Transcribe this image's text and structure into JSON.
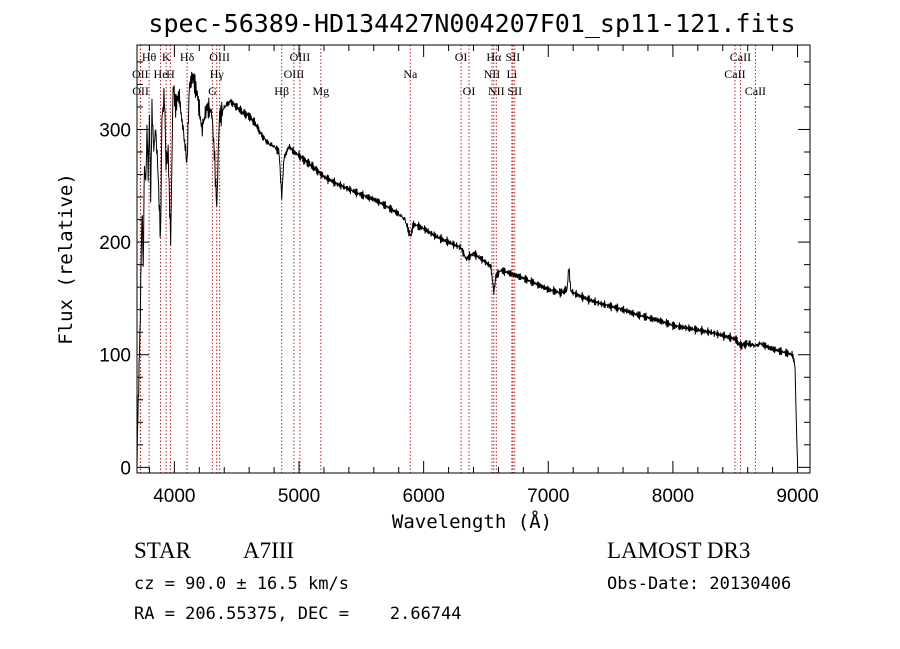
{
  "chart_data": {
    "type": "line",
    "title": "spec-56389-HD134427N004207F01_sp11-121.fits",
    "xlabel": "Wavelength (Å)",
    "ylabel": "Flux (relative)",
    "xlim": [
      3700,
      9100
    ],
    "ylim": [
      -5,
      375
    ],
    "xticks": [
      4000,
      5000,
      6000,
      7000,
      8000,
      9000
    ],
    "yticks": [
      0,
      100,
      200,
      300
    ],
    "series": [
      {
        "name": "spectrum",
        "x": [
          3700,
          3710,
          3720,
          3730,
          3740,
          3750,
          3760,
          3770,
          3780,
          3790,
          3800,
          3810,
          3820,
          3835,
          3850,
          3870,
          3889,
          3900,
          3920,
          3933,
          3950,
          3970,
          3990,
          4010,
          4040,
          4070,
          4102,
          4120,
          4150,
          4180,
          4220,
          4260,
          4300,
          4320,
          4340,
          4360,
          4400,
          4450,
          4500,
          4550,
          4600,
          4650,
          4700,
          4750,
          4800,
          4840,
          4861,
          4880,
          4920,
          4960,
          5000,
          5050,
          5100,
          5150,
          5200,
          5300,
          5400,
          5500,
          5600,
          5700,
          5800,
          5850,
          5893,
          5920,
          6000,
          6100,
          6200,
          6300,
          6340,
          6400,
          6500,
          6540,
          6563,
          6580,
          6620,
          6700,
          6800,
          6900,
          7000,
          7100,
          7150,
          7165,
          7180,
          7200,
          7300,
          7400,
          7500,
          7600,
          7700,
          7800,
          7900,
          8000,
          8100,
          8200,
          8300,
          8400,
          8500,
          8542,
          8600,
          8662,
          8700,
          8800,
          8900,
          8960,
          8980,
          8990,
          9000
        ],
        "y": [
          5,
          60,
          100,
          160,
          230,
          180,
          270,
          250,
          300,
          260,
          310,
          240,
          320,
          280,
          300,
          260,
          200,
          310,
          330,
          270,
          280,
          200,
          340,
          320,
          330,
          300,
          270,
          340,
          345,
          335,
          300,
          320,
          315,
          280,
          230,
          310,
          320,
          325,
          320,
          315,
          312,
          305,
          295,
          288,
          285,
          280,
          240,
          275,
          285,
          280,
          277,
          272,
          268,
          263,
          258,
          252,
          247,
          242,
          238,
          232,
          225,
          220,
          205,
          216,
          212,
          205,
          200,
          195,
          185,
          190,
          182,
          178,
          155,
          170,
          175,
          172,
          168,
          163,
          158,
          155,
          158,
          178,
          157,
          155,
          150,
          146,
          143,
          140,
          136,
          133,
          130,
          126,
          124,
          122,
          120,
          117,
          114,
          108,
          110,
          108,
          110,
          105,
          102,
          100,
          90,
          40,
          5
        ]
      }
    ],
    "spectral_lines": [
      {
        "label": "Hβ",
        "x": 4861,
        "row": 3
      },
      {
        "label": "Hγ",
        "x": 4340,
        "row": 2
      },
      {
        "label": "Hδ",
        "x": 4102,
        "row": 1
      },
      {
        "label": "Hθ",
        "x": 3797,
        "row": 1
      },
      {
        "label": "Hα",
        "x": 6563,
        "row": 1
      },
      {
        "label": "He",
        "x": 3889,
        "row": 2
      },
      {
        "label": "K",
        "x": 3934,
        "row": 1
      },
      {
        "label": "H",
        "x": 3968,
        "row": 2
      },
      {
        "label": "G",
        "x": 4305,
        "row": 3
      },
      {
        "label": "Mg",
        "x": 5175,
        "row": 3
      },
      {
        "label": "Na",
        "x": 5893,
        "row": 2
      },
      {
        "label": "OII",
        "x": 3727,
        "row": 2
      },
      {
        "label": "OII",
        "x": 3729,
        "row": 3
      },
      {
        "label": "OIII",
        "x": 4363,
        "row": 1
      },
      {
        "label": "OIII",
        "x": 4959,
        "row": 2
      },
      {
        "label": "OIII",
        "x": 5007,
        "row": 1
      },
      {
        "label": "OI",
        "x": 6300,
        "row": 1
      },
      {
        "label": "OI",
        "x": 6364,
        "row": 3
      },
      {
        "label": "NII",
        "x": 6548,
        "row": 2
      },
      {
        "label": "NII",
        "x": 6583,
        "row": 3
      },
      {
        "label": "SII",
        "x": 6716,
        "row": 1
      },
      {
        "label": "SII",
        "x": 6731,
        "row": 3
      },
      {
        "label": "Li",
        "x": 6708,
        "row": 2
      },
      {
        "label": "CaII",
        "x": 8498,
        "row": 2
      },
      {
        "label": "CaII",
        "x": 8542,
        "row": 1
      },
      {
        "label": "CaII",
        "x": 8662,
        "row": 3
      }
    ]
  },
  "info": {
    "object_class": "STAR",
    "subclass": "A7III",
    "survey": "LAMOST DR3",
    "redshift": "cz = 90.0 ± 16.5 km/s",
    "obs_date": "Obs-Date: 20130406",
    "coords": "RA = 206.55375, DEC =    2.66744"
  },
  "colors": {
    "line_marker": "#b22222",
    "spectrum": "#000000",
    "axes": "#000000"
  }
}
